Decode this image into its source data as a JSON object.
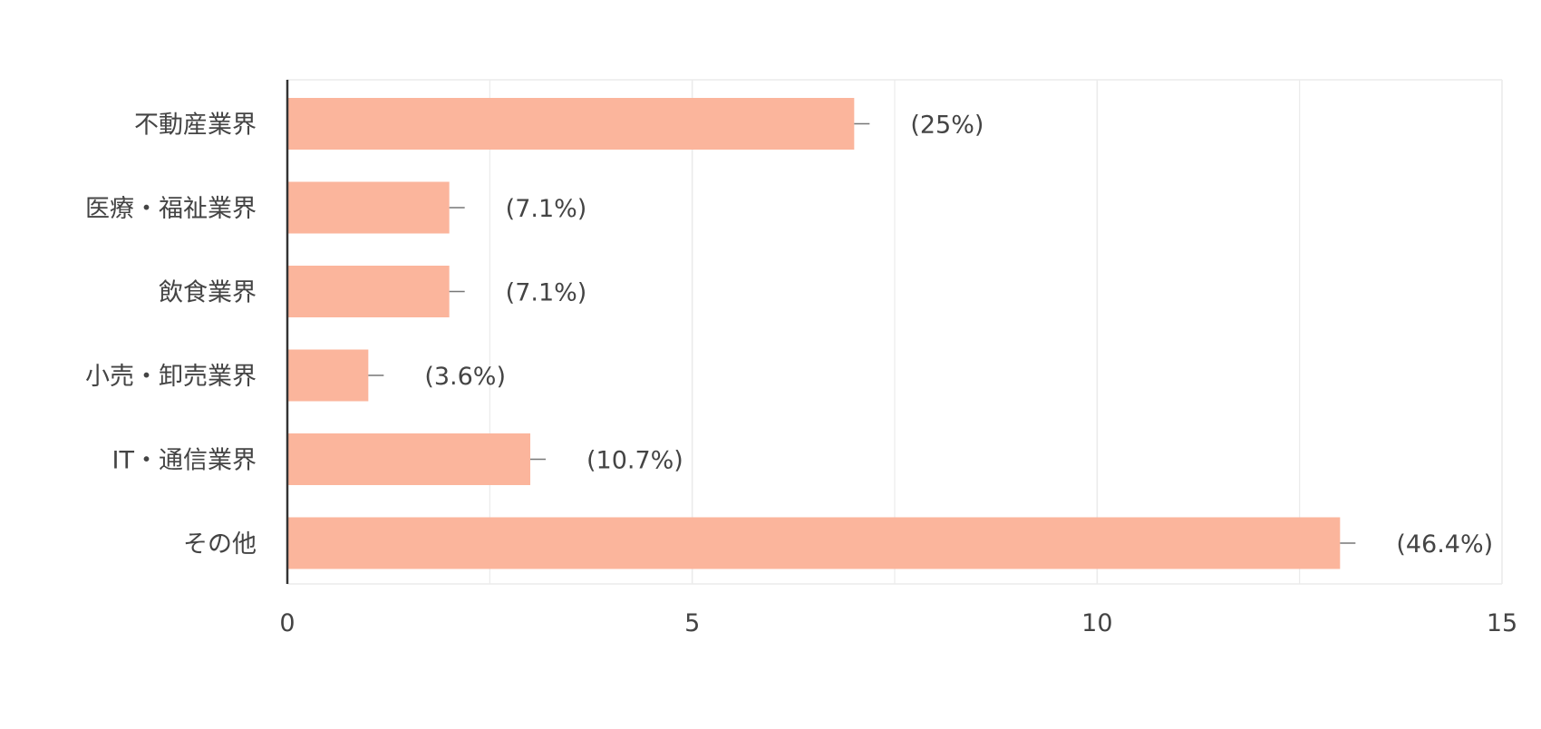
{
  "chart_data": {
    "type": "bar",
    "orientation": "horizontal",
    "categories": [
      "不動産業界",
      "医療・福祉業界",
      "飲食業界",
      "小売・卸売業界",
      "IT・通信業界",
      "その他"
    ],
    "values": [
      7,
      2,
      2,
      1,
      3,
      13
    ],
    "percent_labels": [
      "(25%)",
      "(7.1%)",
      "(7.1%)",
      "(3.6%)",
      "(10.7%)",
      "(46.4%)"
    ],
    "xlim": [
      0,
      15
    ],
    "xticks": [
      "0",
      "5",
      "10",
      "15"
    ],
    "grid": true,
    "bar_color": "#fbb59c",
    "axis_color": "#333333",
    "grid_color": "#ebebeb",
    "title": "",
    "xlabel": "",
    "ylabel": ""
  }
}
